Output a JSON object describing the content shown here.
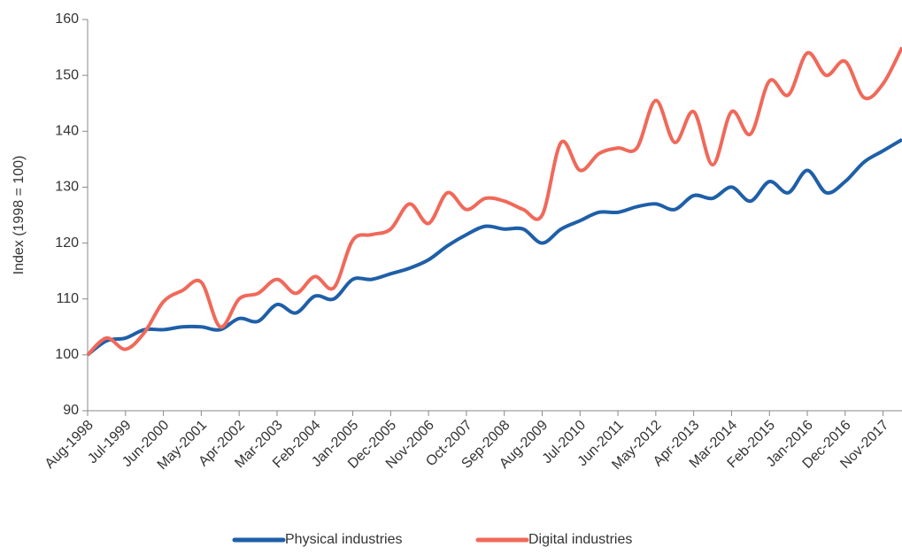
{
  "chart_data": {
    "type": "line",
    "ylabel": "Index (1998 = 100)",
    "categories": [
      "Aug-1998",
      null,
      "Jul-1999",
      null,
      "Jun-2000",
      null,
      "May-2001",
      null,
      "Apr-2002",
      null,
      "Mar-2003",
      null,
      "Feb-2004",
      null,
      "Jan-2005",
      null,
      "Dec-2005",
      null,
      "Nov-2006",
      null,
      "Oct-2007",
      null,
      "Sep-2008",
      null,
      "Aug-2009",
      null,
      "Jul-2010",
      null,
      "Jun-2011",
      null,
      "May-2012",
      null,
      "Apr-2013",
      null,
      "Mar-2014",
      null,
      "Feb-2015",
      null,
      "Jan-2016",
      null,
      "Dec-2016",
      null,
      "Nov-2017",
      null
    ],
    "series": [
      {
        "name": "Physical industries",
        "color": "#1f5fa8",
        "values": [
          100,
          102.5,
          103,
          104.5,
          104.5,
          105,
          105,
          104.5,
          106.5,
          106,
          109,
          107.5,
          110.5,
          110,
          113.5,
          113.5,
          114.5,
          115.5,
          117,
          119.5,
          121.5,
          123,
          122.5,
          122.5,
          120,
          122.5,
          124,
          125.5,
          125.5,
          126.5,
          127,
          126,
          128.5,
          128,
          130,
          127.5,
          131,
          129,
          133,
          129,
          131,
          134.5,
          136.5,
          138.5
        ]
      },
      {
        "name": "Digital industries",
        "color": "#f0695a",
        "values": [
          100,
          103,
          101,
          104,
          109.5,
          111.5,
          113,
          105,
          110,
          111,
          113.5,
          111,
          114,
          112,
          120.5,
          121.5,
          122.5,
          127,
          123.5,
          129,
          126,
          128,
          127.5,
          126,
          125,
          138,
          133,
          136,
          137,
          137,
          145.5,
          138,
          143.5,
          134,
          143.5,
          139.5,
          149,
          146.5,
          154,
          150,
          152.5,
          146,
          148.5,
          155
        ]
      }
    ],
    "ylim": [
      90,
      160
    ],
    "yticks": [
      90,
      100,
      110,
      120,
      130,
      140,
      150,
      160
    ],
    "legend": "bottom"
  }
}
